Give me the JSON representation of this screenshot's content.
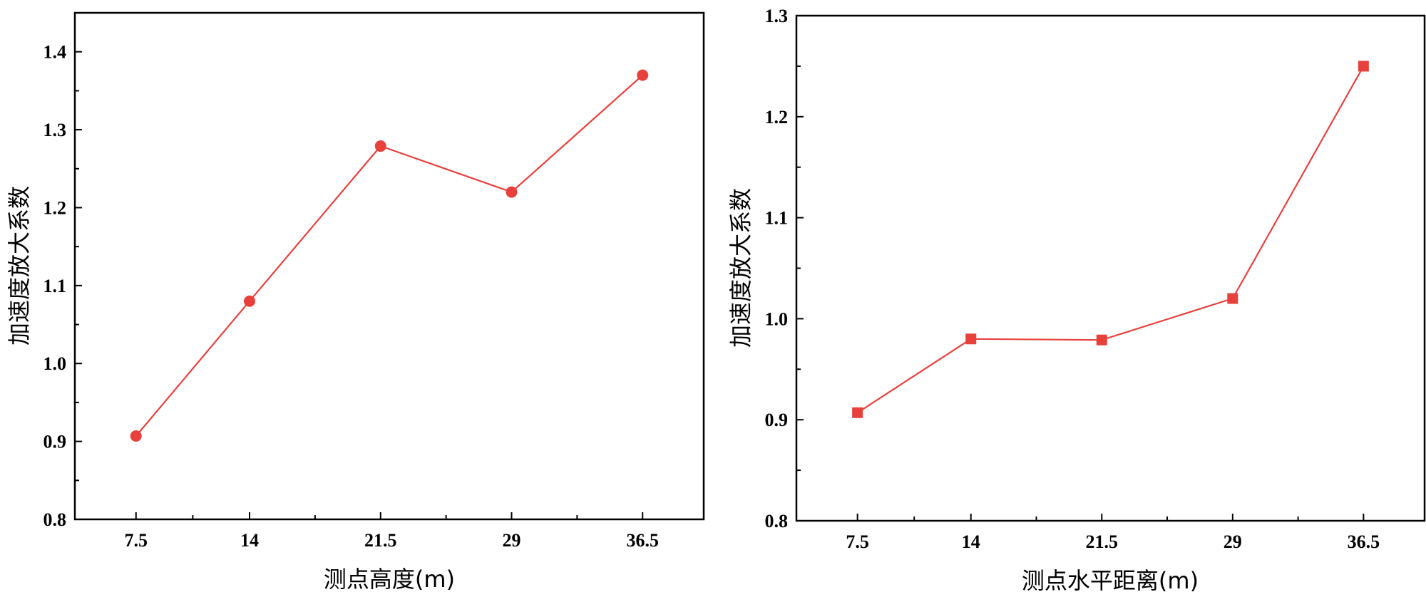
{
  "chart_data": [
    {
      "type": "line",
      "title": "",
      "xlabel": "测点高度(m)",
      "ylabel": "加速度放大系数",
      "categories": [
        "7.5",
        "14",
        "21.5",
        "29",
        "36.5"
      ],
      "x": [
        7.5,
        14,
        21.5,
        29,
        36.5
      ],
      "xlim": [
        4,
        40
      ],
      "ylim": [
        0.8,
        1.45
      ],
      "yticks": [
        0.8,
        0.9,
        1.0,
        1.1,
        1.2,
        1.3,
        1.4
      ],
      "ytick_labels": [
        "0.8",
        "0.9",
        "1.0",
        "1.1",
        "1.2",
        "1.3",
        "1.4"
      ],
      "grid": false,
      "series": [
        {
          "name": "加速度放大系数",
          "marker": "circle",
          "color": "#e8413c",
          "values": [
            0.907,
            1.08,
            1.279,
            1.22,
            1.37
          ]
        }
      ]
    },
    {
      "type": "line",
      "title": "",
      "xlabel": "测点水平距离(m)",
      "ylabel": "加速度放大系数",
      "categories": [
        "7.5",
        "14",
        "21.5",
        "29",
        "36.5"
      ],
      "x": [
        7.5,
        14,
        21.5,
        29,
        36.5
      ],
      "xlim": [
        4,
        40
      ],
      "ylim": [
        0.8,
        1.3
      ],
      "yticks": [
        0.8,
        0.9,
        1.0,
        1.1,
        1.2,
        1.3
      ],
      "ytick_labels": [
        "0.8",
        "0.9",
        "1.0",
        "1.1",
        "1.2",
        "1.3"
      ],
      "grid": false,
      "series": [
        {
          "name": "加速度放大系数",
          "marker": "square",
          "color": "#e8413c",
          "values": [
            0.907,
            0.98,
            0.979,
            1.02,
            1.25
          ]
        }
      ]
    }
  ]
}
